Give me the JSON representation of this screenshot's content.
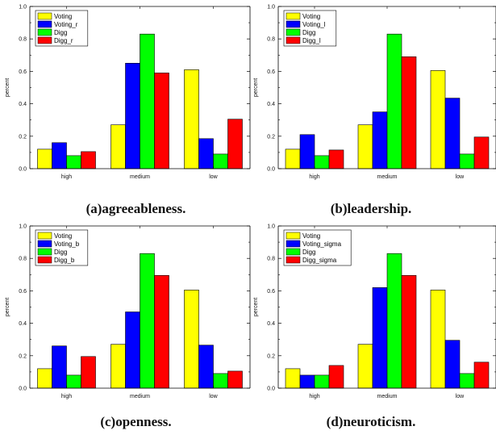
{
  "chart_data": [
    {
      "type": "bar",
      "caption": "(a)agreeableness.",
      "categories": [
        "high",
        "medium",
        "low"
      ],
      "ylabel": "percent",
      "xlabel": "",
      "ylim": [
        0,
        1.0
      ],
      "yticks": [
        "0.0",
        "0.2",
        "0.4",
        "0.6",
        "0.8",
        "1.0"
      ],
      "legend_position": "top-left",
      "series": [
        {
          "name": "Voting",
          "color": "#ffff00",
          "values": [
            0.12,
            0.27,
            0.61
          ]
        },
        {
          "name": "Voting_r",
          "color": "#0000ff",
          "values": [
            0.16,
            0.65,
            0.185
          ]
        },
        {
          "name": "Digg",
          "color": "#00ff00",
          "values": [
            0.08,
            0.83,
            0.09
          ]
        },
        {
          "name": "Digg_r",
          "color": "#ff0000",
          "values": [
            0.105,
            0.59,
            0.305
          ]
        }
      ]
    },
    {
      "type": "bar",
      "caption": "(b)leadership.",
      "categories": [
        "high",
        "medium",
        "low"
      ],
      "ylabel": "percent",
      "xlabel": "",
      "ylim": [
        0,
        1.0
      ],
      "yticks": [
        "0.0",
        "0.2",
        "0.4",
        "0.6",
        "0.8",
        "1.0"
      ],
      "legend_position": "top-left",
      "series": [
        {
          "name": "Voting",
          "color": "#ffff00",
          "values": [
            0.12,
            0.27,
            0.605
          ]
        },
        {
          "name": "Voting_l",
          "color": "#0000ff",
          "values": [
            0.21,
            0.35,
            0.435
          ]
        },
        {
          "name": "Digg",
          "color": "#00ff00",
          "values": [
            0.08,
            0.83,
            0.09
          ]
        },
        {
          "name": "Digg_l",
          "color": "#ff0000",
          "values": [
            0.115,
            0.69,
            0.195
          ]
        }
      ]
    },
    {
      "type": "bar",
      "caption": "(c)openness.",
      "categories": [
        "high",
        "medium",
        "low"
      ],
      "ylabel": "percent",
      "xlabel": "",
      "ylim": [
        0,
        1.0
      ],
      "yticks": [
        "0.0",
        "0.2",
        "0.4",
        "0.6",
        "0.8",
        "1.0"
      ],
      "legend_position": "top-left",
      "series": [
        {
          "name": "Voting",
          "color": "#ffff00",
          "values": [
            0.12,
            0.27,
            0.605
          ]
        },
        {
          "name": "Voting_b",
          "color": "#0000ff",
          "values": [
            0.26,
            0.47,
            0.265
          ]
        },
        {
          "name": "Digg",
          "color": "#00ff00",
          "values": [
            0.08,
            0.83,
            0.09
          ]
        },
        {
          "name": "Digg_b",
          "color": "#ff0000",
          "values": [
            0.195,
            0.695,
            0.105
          ]
        }
      ]
    },
    {
      "type": "bar",
      "caption": "(d)neuroticism.",
      "categories": [
        "high",
        "medium",
        "low"
      ],
      "ylabel": "percent",
      "xlabel": "",
      "ylim": [
        0,
        1.0
      ],
      "yticks": [
        "0.0",
        "0.2",
        "0.4",
        "0.6",
        "0.8",
        "1.0"
      ],
      "legend_position": "top-left",
      "series": [
        {
          "name": "Voting",
          "color": "#ffff00",
          "values": [
            0.12,
            0.27,
            0.605
          ]
        },
        {
          "name": "Voting_sigma",
          "color": "#0000ff",
          "values": [
            0.08,
            0.62,
            0.295
          ]
        },
        {
          "name": "Digg",
          "color": "#00ff00",
          "values": [
            0.08,
            0.83,
            0.09
          ]
        },
        {
          "name": "Digg_sigma",
          "color": "#ff0000",
          "values": [
            0.14,
            0.695,
            0.16
          ]
        }
      ]
    }
  ]
}
